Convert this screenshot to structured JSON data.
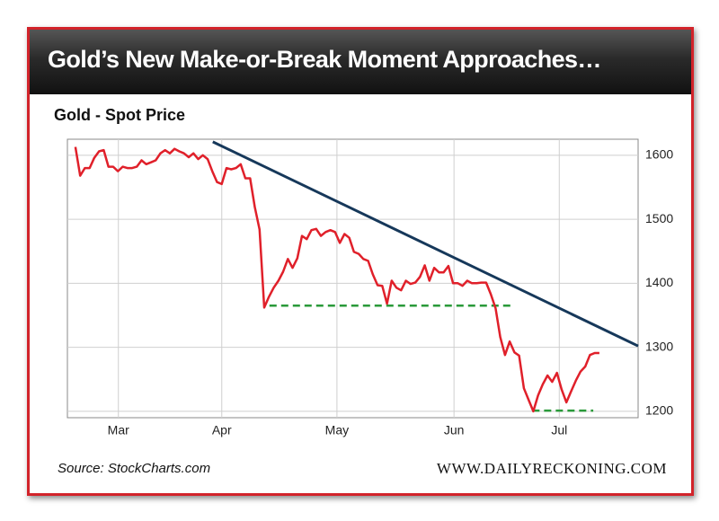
{
  "chart_data": {
    "type": "line",
    "title": "Gold’s New Make-or-Break Moment Approaches…",
    "subtitle": "Gold - Spot Price",
    "source": "Source: StockCharts.com",
    "credit": "WWW.DAILYRECKONING.COM",
    "color": "#e0202a",
    "values": [
      1613,
      1568,
      1580,
      1580,
      1596,
      1606,
      1608,
      1582,
      1582,
      1575,
      1582,
      1580,
      1580,
      1582,
      1592,
      1586,
      1589,
      1592,
      1603,
      1608,
      1603,
      1610,
      1606,
      1603,
      1597,
      1603,
      1594,
      1600,
      1594,
      1575,
      1558,
      1555,
      1580,
      1578,
      1580,
      1586,
      1564,
      1564,
      1519,
      1484,
      1362,
      1379,
      1393,
      1404,
      1418,
      1438,
      1424,
      1439,
      1474,
      1469,
      1483,
      1485,
      1474,
      1480,
      1483,
      1480,
      1463,
      1477,
      1471,
      1449,
      1446,
      1438,
      1435,
      1414,
      1397,
      1396,
      1368,
      1404,
      1393,
      1389,
      1404,
      1399,
      1401,
      1410,
      1428,
      1404,
      1424,
      1417,
      1417,
      1427,
      1400,
      1400,
      1396,
      1404,
      1400,
      1400,
      1401,
      1401,
      1383,
      1361,
      1316,
      1288,
      1309,
      1292,
      1287,
      1236,
      1218,
      1200,
      1225,
      1242,
      1256,
      1246,
      1260,
      1234,
      1214,
      1231,
      1248,
      1262,
      1270,
      1288,
      1291,
      1291
    ],
    "xlim": [
      -1.7,
      119.2
    ],
    "xticks": [
      {
        "value": 9.1,
        "label": "Mar"
      },
      {
        "value": 31,
        "label": "Apr"
      },
      {
        "value": 55.4,
        "label": "May"
      },
      {
        "value": 80.2,
        "label": "Jun"
      },
      {
        "value": 102.5,
        "label": "Jul"
      }
    ],
    "ylim": [
      1190,
      1625
    ],
    "yticks": [
      1200,
      1300,
      1400,
      1500,
      1600
    ],
    "grid": true,
    "annotations": [
      {
        "x": [
          29.1,
          119.2
        ],
        "y": [
          1621,
          1302
        ],
        "color": "#16385a",
        "dashed": false
      },
      {
        "x": [
          41.1,
          93
        ],
        "y": [
          1365,
          1365
        ],
        "color": "#2a9a3a",
        "dashed": true
      },
      {
        "x": [
          96.8,
          109.7
        ],
        "y": [
          1201,
          1201
        ],
        "color": "#2a9a3a",
        "dashed": true
      }
    ]
  }
}
